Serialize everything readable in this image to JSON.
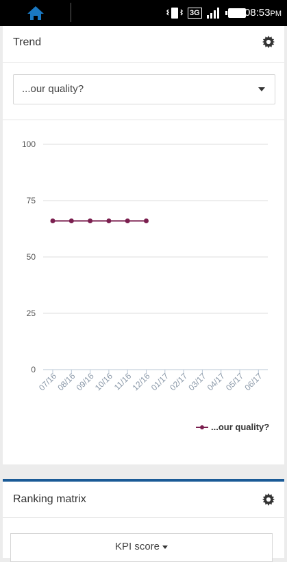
{
  "status_bar": {
    "network": "3G",
    "time": "08:53",
    "time_suffix": "PM"
  },
  "trend_card": {
    "title": "Trend",
    "select_value": "...our quality?"
  },
  "ranking_card": {
    "title": "Ranking matrix",
    "select_value": "KPI score"
  },
  "chart_data": {
    "type": "line",
    "categories": [
      "07/16",
      "08/16",
      "09/16",
      "10/16",
      "11/16",
      "12/16",
      "01/17",
      "02/17",
      "03/17",
      "04/17",
      "05/17",
      "06/17"
    ],
    "series": [
      {
        "name": "...our quality?",
        "values": [
          66,
          66,
          66,
          66,
          66,
          66,
          null,
          null,
          null,
          null,
          null,
          null
        ],
        "color": "#7b1f4f"
      }
    ],
    "y_ticks": [
      "100",
      "75",
      "50",
      "25",
      "0"
    ],
    "ylim": [
      0,
      100
    ],
    "grid": true,
    "legend_position": "bottom-right"
  }
}
